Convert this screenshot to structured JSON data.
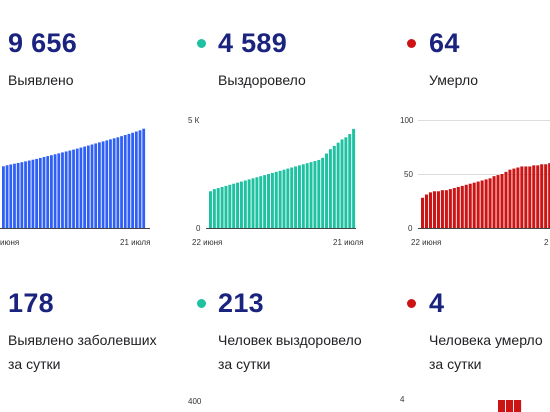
{
  "colors": {
    "cases": "#2f5ff5",
    "recovered": "#1ec2a1",
    "deaths": "#cc1414",
    "value_text": "#1a237e"
  },
  "totals": {
    "cases": {
      "value": "9 656",
      "label": "Выявлено"
    },
    "recovered": {
      "value": "4 589",
      "label": "Выздоровело"
    },
    "deaths": {
      "value": "64",
      "label": "Умерло"
    }
  },
  "daily": {
    "cases": {
      "value": "178",
      "label_line1": "Выявлено заболевших",
      "label_line2": "за сутки"
    },
    "recovered": {
      "value": "213",
      "label_line1": "Человек выздоровело",
      "label_line2": "за сутки"
    },
    "deaths": {
      "value": "4",
      "label_line1": "Человека умерло",
      "label_line2": "за сутки"
    }
  },
  "chart_data": [
    {
      "type": "bar",
      "series": [
        {
          "values": [
            6000,
            6100,
            6180,
            6250,
            6320,
            6400,
            6480,
            6560,
            6640,
            6720,
            6810,
            6900,
            6990,
            7080,
            7170,
            7260,
            7350,
            7440,
            7530,
            7620,
            7720,
            7820,
            7920,
            8020,
            8120,
            8220,
            8320,
            8420,
            8520,
            8620,
            8720,
            8820,
            8930,
            9040,
            9150,
            9260,
            9380,
            9500,
            9656
          ]
        }
      ],
      "x_tick_labels": [
        "июня",
        "21 июля"
      ],
      "y_tick_labels": [],
      "ylim": [
        0,
        10500
      ]
    },
    {
      "type": "bar",
      "series": [
        {
          "values": [
            1700,
            1800,
            1850,
            1900,
            1950,
            2000,
            2050,
            2100,
            2150,
            2200,
            2250,
            2300,
            2350,
            2400,
            2450,
            2500,
            2550,
            2600,
            2650,
            2700,
            2750,
            2800,
            2850,
            2900,
            2950,
            3000,
            3050,
            3100,
            3150,
            3250,
            3450,
            3650,
            3800,
            3950,
            4100,
            4200,
            4350,
            4589
          ]
        }
      ],
      "x_tick_labels": [
        "22 июня",
        "21 июля"
      ],
      "y_tick_labels": [
        "5 К",
        "0"
      ],
      "ylim": [
        0,
        5000
      ]
    },
    {
      "type": "bar",
      "series": [
        {
          "values": [
            28,
            31,
            33,
            34,
            34,
            35,
            35,
            36,
            37,
            38,
            39,
            40,
            41,
            42,
            43,
            44,
            45,
            46,
            48,
            49,
            50,
            52,
            54,
            55,
            56,
            57,
            57,
            57,
            58,
            58,
            59,
            59,
            60,
            61,
            62,
            63,
            64
          ]
        }
      ],
      "x_tick_labels": [
        "22 июня",
        "2"
      ],
      "y_tick_labels": [
        "100",
        "50",
        "0"
      ],
      "ylim": [
        0,
        100
      ]
    },
    {
      "type": "bar",
      "series": [],
      "x_tick_labels": [],
      "y_tick_labels": [
        "400"
      ],
      "ylim": [
        0,
        400
      ]
    },
    {
      "type": "bar",
      "series": [
        {
          "values": [
            4,
            4,
            4
          ]
        }
      ],
      "x_tick_labels": [],
      "y_tick_labels": [
        "4"
      ],
      "ylim": [
        0,
        4
      ]
    }
  ]
}
